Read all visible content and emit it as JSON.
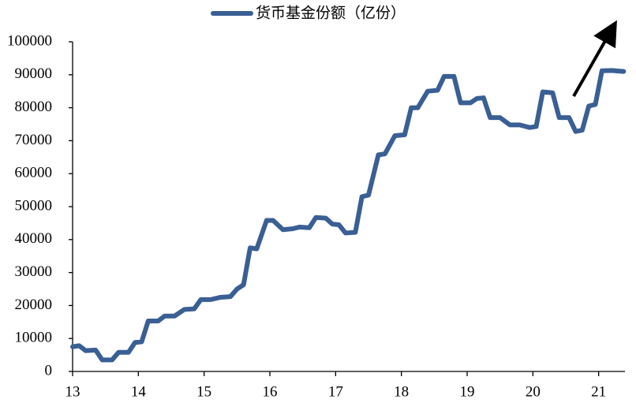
{
  "chart_data": {
    "type": "line",
    "x": [
      13.0,
      13.1,
      13.2,
      13.35,
      13.45,
      13.6,
      13.7,
      13.85,
      13.95,
      14.05,
      14.15,
      14.3,
      14.4,
      14.55,
      14.7,
      14.85,
      14.95,
      15.1,
      15.25,
      15.4,
      15.5,
      15.6,
      15.7,
      15.8,
      15.95,
      16.05,
      16.2,
      16.35,
      16.45,
      16.6,
      16.7,
      16.85,
      16.95,
      17.05,
      17.15,
      17.3,
      17.4,
      17.5,
      17.65,
      17.75,
      17.9,
      18.05,
      18.15,
      18.25,
      18.4,
      18.55,
      18.65,
      18.8,
      18.9,
      19.05,
      19.15,
      19.25,
      19.35,
      19.5,
      19.65,
      19.8,
      19.95,
      20.05,
      20.15,
      20.3,
      20.4,
      20.55,
      20.65,
      20.75,
      20.85,
      20.95,
      21.05,
      21.2,
      21.38
    ],
    "series": [
      {
        "name": "货币基金份额（亿份）",
        "color": "#3a5f94",
        "values": [
          7500,
          7800,
          6300,
          6500,
          3500,
          3500,
          5800,
          5800,
          8800,
          9000,
          15300,
          15300,
          16800,
          16800,
          18800,
          19000,
          21800,
          21800,
          22500,
          22700,
          25000,
          26300,
          37500,
          37200,
          45800,
          45800,
          43000,
          43300,
          43800,
          43600,
          46700,
          46500,
          44700,
          44500,
          42000,
          42200,
          53000,
          53500,
          65700,
          66000,
          71500,
          71800,
          80000,
          80000,
          85000,
          85300,
          89500,
          89500,
          81500,
          81500,
          82800,
          83000,
          77000,
          77000,
          74800,
          74800,
          74000,
          74300,
          84800,
          84500,
          77000,
          77000,
          72800,
          73200,
          80500,
          81000,
          91200,
          91300,
          91000
        ]
      }
    ],
    "xlim": [
      13,
      21.4
    ],
    "xticks": [
      13,
      14,
      15,
      16,
      17,
      18,
      19,
      20,
      21
    ],
    "ylim": [
      0,
      100000
    ],
    "yticks": [
      0,
      10000,
      20000,
      30000,
      40000,
      50000,
      60000,
      70000,
      80000,
      90000,
      100000
    ],
    "legend": "top"
  }
}
